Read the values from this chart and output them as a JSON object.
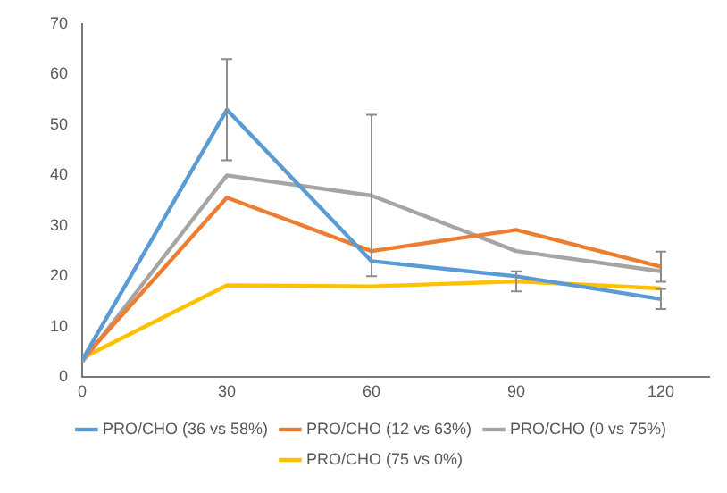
{
  "chart_data": {
    "type": "line",
    "x": [
      0,
      30,
      60,
      90,
      120
    ],
    "xlim": [
      0,
      130
    ],
    "xticks": [
      0,
      30,
      60,
      90,
      120
    ],
    "ylim": [
      0,
      70
    ],
    "yticks": [
      0,
      10,
      20,
      30,
      40,
      50,
      60,
      70
    ],
    "grid": false,
    "legend": "bottom",
    "marker": "none",
    "line_style": "solid",
    "series": [
      {
        "name": "PRO/CHO (36 vs 58%)",
        "color": "#5b9bd5",
        "values": [
          3.4,
          53,
          23,
          20,
          15.5
        ],
        "errors": [
          null,
          10,
          null,
          null,
          2
        ]
      },
      {
        "name": "PRO/CHO (12 vs 63%)",
        "color": "#ed7d31",
        "values": [
          3.5,
          35.6,
          25,
          29.2,
          21.9
        ],
        "errors": [
          null,
          null,
          null,
          null,
          3
        ]
      },
      {
        "name": "PRO/CHO (0 vs 75%)",
        "color": "#a5a5a5",
        "values": [
          3,
          40,
          36,
          25,
          21
        ],
        "errors": [
          null,
          null,
          16,
          null,
          null
        ]
      },
      {
        "name": "PRO/CHO (75 vs 0%)",
        "color": "#ffc000",
        "values": [
          3.8,
          18.2,
          18,
          19,
          17.6
        ],
        "errors": [
          null,
          null,
          null,
          2,
          null
        ]
      }
    ]
  }
}
